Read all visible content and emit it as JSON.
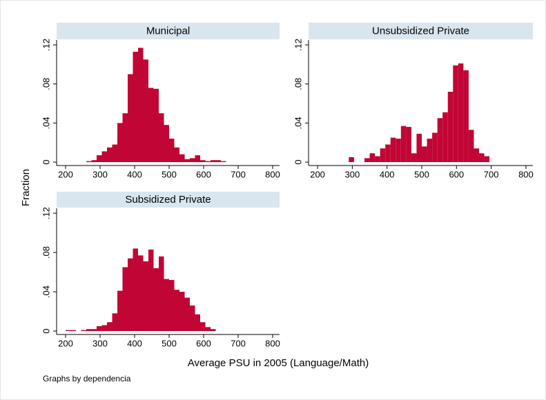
{
  "ytitle": "Fraction",
  "xtitle": "Average PSU in 2005 (Language/Math)",
  "note": "Graphs by dependencia",
  "chart_data": [
    {
      "type": "histogram",
      "title": "Municipal",
      "color": "#c10534",
      "bins": [
        200,
        215,
        230,
        245,
        260,
        275,
        290,
        305,
        320,
        335,
        350,
        365,
        380,
        395,
        410,
        425,
        440,
        455,
        470,
        485,
        500,
        515,
        530,
        545,
        560,
        575,
        590,
        605,
        620,
        635,
        650,
        665,
        680,
        695,
        710,
        725,
        740,
        755,
        770,
        785,
        800
      ],
      "values": [
        0,
        0,
        0,
        0,
        0.001,
        0.002,
        0.007,
        0.011,
        0.015,
        0.018,
        0.04,
        0.05,
        0.09,
        0.113,
        0.117,
        0.105,
        0.076,
        0.075,
        0.05,
        0.038,
        0.024,
        0.015,
        0.008,
        0.003,
        0.004,
        0.007,
        0.002,
        0.001,
        0.002,
        0.002,
        0.001,
        0,
        0,
        0,
        0,
        0,
        0,
        0,
        0,
        0
      ],
      "xlim": [
        174,
        820
      ],
      "ylim": [
        -0.0035,
        0.125
      ],
      "xticks": [
        200,
        300,
        400,
        500,
        600,
        700,
        800
      ],
      "yticks": [
        0,
        {
          "value": 0.04,
          "label": ".04"
        },
        {
          "value": 0.08,
          "label": ".08"
        },
        {
          "value": 0.12,
          "label": ".12"
        }
      ]
    },
    {
      "type": "histogram",
      "title": "Unsubsidized Private",
      "color": "#c10534",
      "bins": [
        200,
        215,
        230,
        245,
        260,
        275,
        290,
        305,
        320,
        335,
        350,
        365,
        380,
        395,
        410,
        425,
        440,
        455,
        470,
        485,
        500,
        515,
        530,
        545,
        560,
        575,
        590,
        605,
        620,
        635,
        650,
        665,
        680,
        695,
        710,
        725,
        740,
        755,
        770,
        785,
        800
      ],
      "values": [
        0,
        0,
        0,
        0,
        0,
        0,
        0.005,
        0,
        0,
        0.004,
        0.009,
        0.006,
        0.014,
        0.018,
        0.025,
        0.024,
        0.037,
        0.036,
        0.009,
        0.029,
        0.016,
        0.024,
        0.03,
        0.045,
        0.051,
        0.072,
        0.099,
        0.101,
        0.094,
        0.033,
        0.014,
        0.009,
        0.006,
        0,
        0,
        0,
        0,
        0,
        0,
        0
      ],
      "xlim": [
        174,
        820
      ],
      "ylim": [
        -0.0035,
        0.125
      ],
      "xticks": [
        200,
        300,
        400,
        500,
        600,
        700,
        800
      ],
      "yticks": [
        0,
        {
          "value": 0.04,
          "label": ".04"
        },
        {
          "value": 0.08,
          "label": ".08"
        },
        {
          "value": 0.12,
          "label": ".12"
        }
      ]
    },
    {
      "type": "histogram",
      "title": "Subsidized Private",
      "color": "#c10534",
      "bins": [
        200,
        215,
        230,
        245,
        260,
        275,
        290,
        305,
        320,
        335,
        350,
        365,
        380,
        395,
        410,
        425,
        440,
        455,
        470,
        485,
        500,
        515,
        530,
        545,
        560,
        575,
        590,
        605,
        620,
        635,
        650,
        665,
        680,
        695,
        710,
        725,
        740,
        755,
        770,
        785,
        800
      ],
      "values": [
        0.001,
        0.001,
        0,
        0.001,
        0.002,
        0.002,
        0.005,
        0.006,
        0.009,
        0.018,
        0.041,
        0.065,
        0.074,
        0.084,
        0.077,
        0.071,
        0.083,
        0.064,
        0.076,
        0.053,
        0.052,
        0.042,
        0.04,
        0.034,
        0.026,
        0.017,
        0.009,
        0.004,
        0.002,
        0,
        0,
        0,
        0,
        0,
        0,
        0,
        0,
        0,
        0,
        0
      ],
      "xlim": [
        174,
        820
      ],
      "ylim": [
        -0.0035,
        0.125
      ],
      "xticks": [
        200,
        300,
        400,
        500,
        600,
        700,
        800
      ],
      "yticks": [
        0,
        {
          "value": 0.04,
          "label": ".04"
        },
        {
          "value": 0.08,
          "label": ".08"
        },
        {
          "value": 0.12,
          "label": ".12"
        }
      ]
    }
  ]
}
